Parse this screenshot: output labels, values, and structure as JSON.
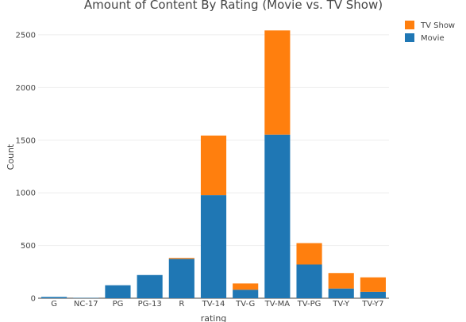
{
  "chart_data": {
    "type": "bar",
    "stacked": true,
    "title": "Amount of Content By Rating (Movie vs. TV Show)",
    "xlabel": "rating",
    "ylabel": "Count",
    "categories": [
      "G",
      "NC-17",
      "PG",
      "PG-13",
      "R",
      "TV-14",
      "TV-G",
      "TV-MA",
      "TV-PG",
      "TV-Y",
      "TV-Y7"
    ],
    "series": [
      {
        "name": "Movie",
        "color": "#1f77b4",
        "values": [
          12,
          3,
          123,
          220,
          373,
          978,
          80,
          1553,
          320,
          92,
          61
        ]
      },
      {
        "name": "TV Show",
        "color": "#ff7f0e",
        "values": [
          0,
          0,
          0,
          0,
          9,
          566,
          60,
          989,
          203,
          147,
          137
        ]
      }
    ],
    "ylim": [
      0,
      2650
    ],
    "yticks": [
      0,
      500,
      1000,
      1500,
      2000,
      2500
    ],
    "ytick_labels": [
      "0",
      "500",
      "1000",
      "1500",
      "2000",
      "2500"
    ],
    "legend": {
      "placement": "top-right",
      "order": [
        "TV Show",
        "Movie"
      ]
    },
    "grid": true
  }
}
